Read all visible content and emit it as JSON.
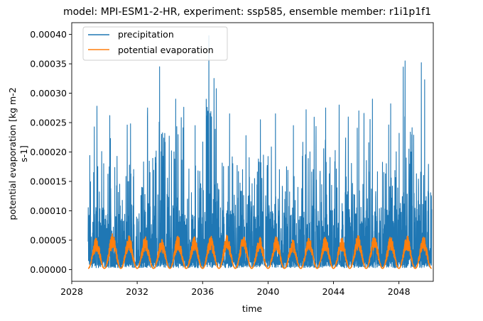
{
  "chart_data": {
    "type": "line",
    "title": "model: MPI-ESM1-2-HR, experiment: ssp585, ensemble member: r1i1p1f1",
    "xlabel": "time",
    "ylabel_lines": [
      "potential evaporation [kg m-2",
      "s-1]"
    ],
    "xlim": [
      2028,
      2050.1
    ],
    "ylim": [
      -2e-05,
      0.00042
    ],
    "x_ticks": [
      2028,
      2032,
      2036,
      2040,
      2044,
      2048
    ],
    "x_tick_labels": [
      "2028",
      "2032",
      "2036",
      "2040",
      "2044",
      "2048"
    ],
    "y_ticks": [
      0,
      5e-05,
      0.0001,
      0.00015,
      0.0002,
      0.00025,
      0.0003,
      0.00035,
      0.0004
    ],
    "y_tick_labels": [
      "0.00000",
      "0.00005",
      "0.00010",
      "0.00015",
      "0.00020",
      "0.00025",
      "0.00030",
      "0.00035",
      "0.00040"
    ],
    "grid": false,
    "legend_position": "top-left",
    "series": [
      {
        "name": "precipitation",
        "color": "#1f77b4",
        "x_start": 2029.0,
        "x_end": 2050.0,
        "baseline": 3e-06,
        "annual_peaks": [
          0.000278,
          0.000262,
          0.000248,
          0.000275,
          0.000345,
          0.00029,
          0.000245,
          0.000398,
          0.000265,
          0.000228,
          0.000255,
          0.000265,
          0.000245,
          0.000272,
          0.000275,
          0.00028,
          0.00027,
          0.00029,
          0.000282,
          0.000355,
          0.000352
        ]
      },
      {
        "name": "potential evaporation",
        "color": "#ff7f0e",
        "x_start": 2029.0,
        "x_end": 2050.0,
        "baseline": 2e-06,
        "annual_peaks": [
          5.5e-05,
          6.2e-05,
          5.8e-05,
          5.7e-05,
          5.2e-05,
          5.8e-05,
          5.6e-05,
          5.7e-05,
          6e-05,
          5.9e-05,
          5.7e-05,
          5.8e-05,
          5.2e-05,
          5.8e-05,
          5.7e-05,
          5.5e-05,
          5.9e-05,
          6e-05,
          5.7e-05,
          5.8e-05,
          5.7e-05
        ]
      }
    ]
  }
}
